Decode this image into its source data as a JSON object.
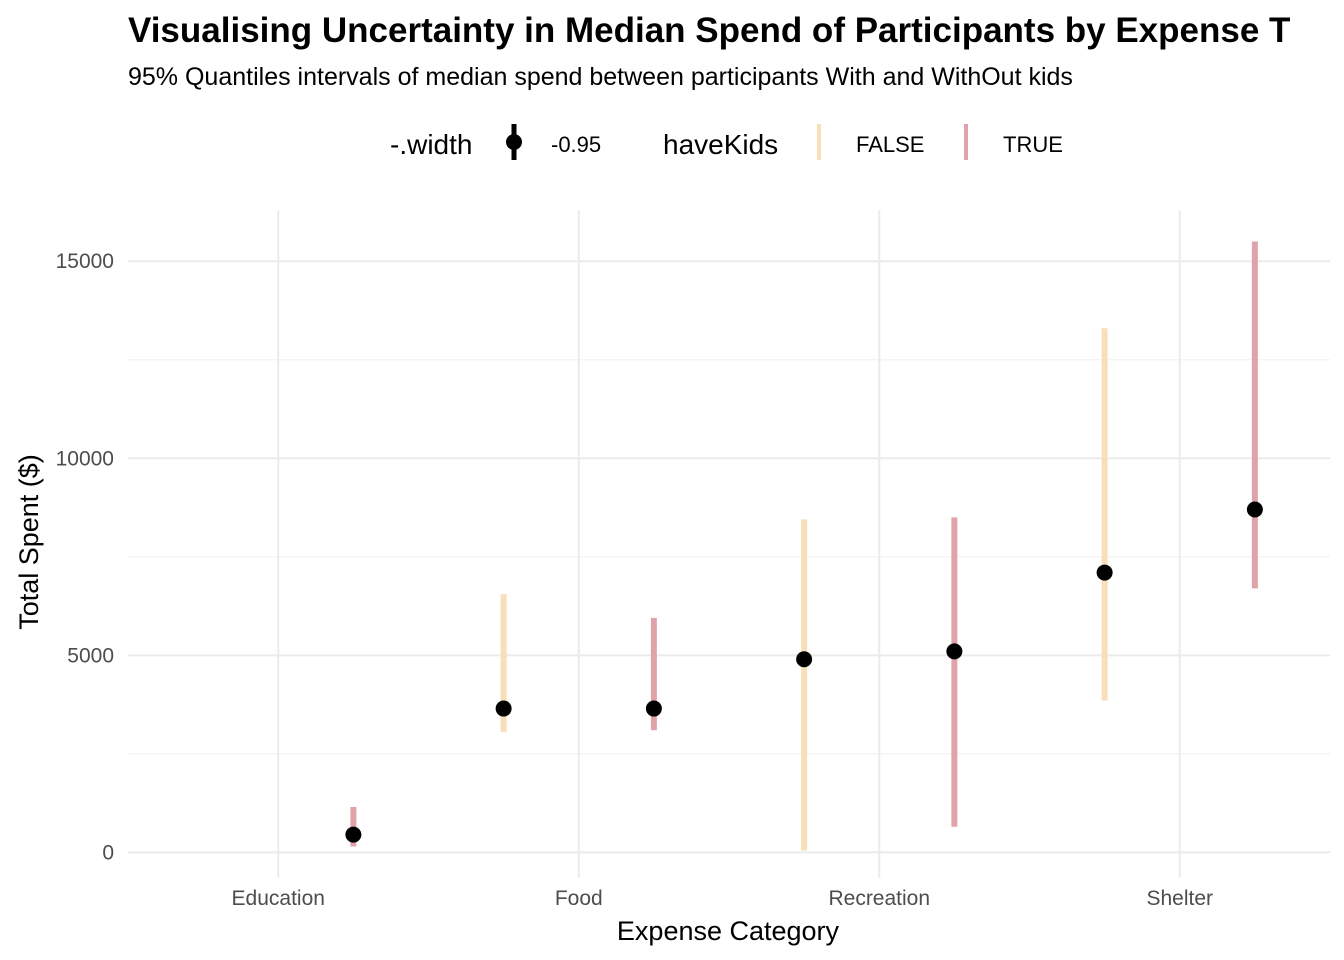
{
  "chart_data": {
    "type": "pointinterval",
    "title": "Visualising Uncertainty in Median Spend of Participants by Expense T",
    "subtitle": "95% Quantiles intervals of median spend between participants With and WithOut kids",
    "xlabel": "Expense Category",
    "ylabel": "Total Spent ($)",
    "categories": [
      "Education",
      "Food",
      "Recreation",
      "Shelter"
    ],
    "ylim": [
      -650,
      16300
    ],
    "yticks": [
      0,
      5000,
      10000,
      15000
    ],
    "ytick_labels": [
      "0",
      "5000",
      "10000",
      "15000"
    ],
    "grid": true,
    "legend_position": "top",
    "legend": {
      "width_title": "-.width",
      "width_label": "-0.95",
      "group_title": "haveKids",
      "groups": [
        {
          "label": "FALSE",
          "color": "#f8dfb8"
        },
        {
          "label": "TRUE",
          "color": "#e0a3a9"
        }
      ]
    },
    "series": [
      {
        "name": "FALSE",
        "color": "#f8dfb8",
        "points": [
          {
            "category": "Food",
            "median": 3650,
            "lower": 3050,
            "upper": 6550
          },
          {
            "category": "Recreation",
            "median": 4900,
            "lower": 50,
            "upper": 8450
          },
          {
            "category": "Shelter",
            "median": 7100,
            "lower": 3850,
            "upper": 13300
          }
        ]
      },
      {
        "name": "TRUE",
        "color": "#e0a3a9",
        "points": [
          {
            "category": "Education",
            "median": 450,
            "lower": 150,
            "upper": 1150
          },
          {
            "category": "Food",
            "median": 3650,
            "lower": 3100,
            "upper": 5950
          },
          {
            "category": "Recreation",
            "median": 5100,
            "lower": 650,
            "upper": 8500
          },
          {
            "category": "Shelter",
            "median": 8700,
            "lower": 6700,
            "upper": 15500
          }
        ]
      }
    ],
    "point_color": "#000000"
  }
}
